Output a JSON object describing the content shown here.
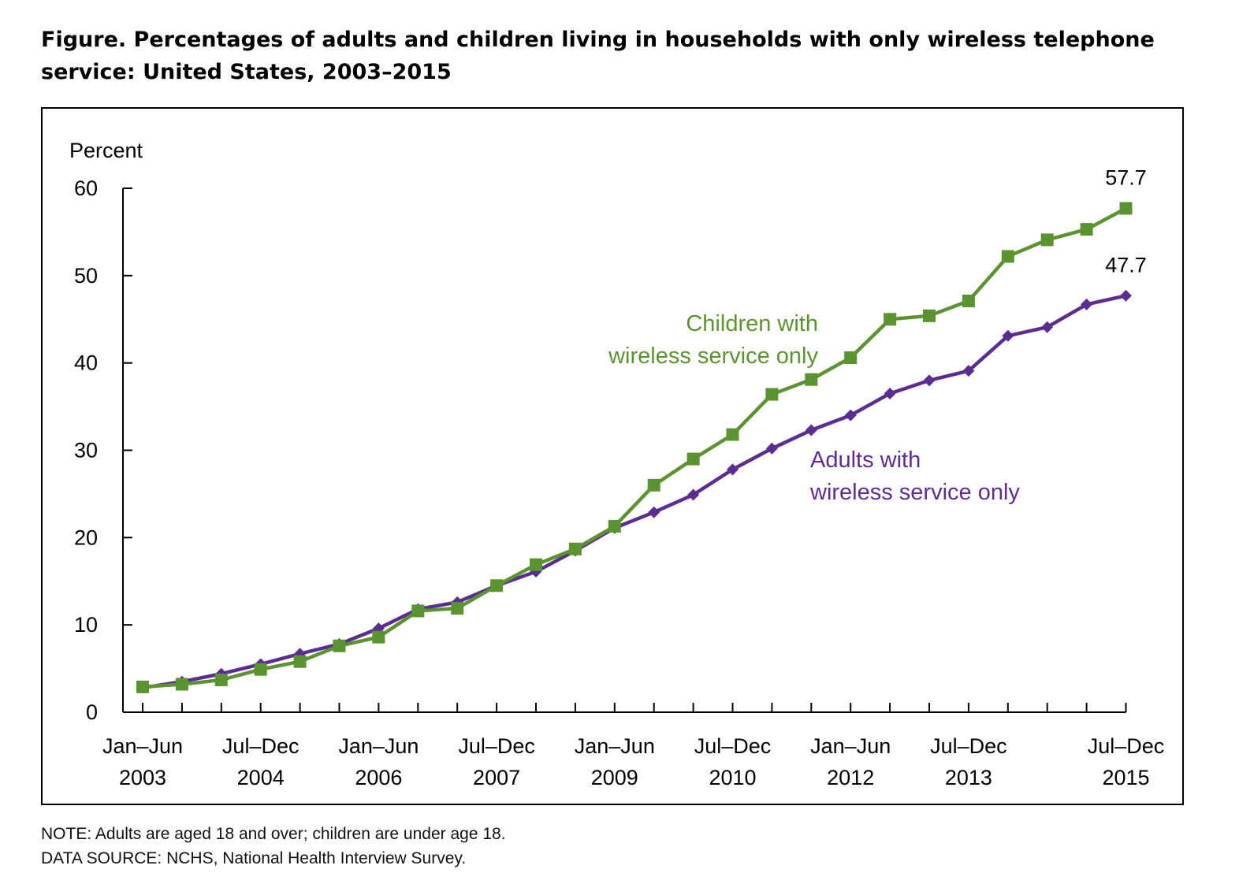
{
  "figure": {
    "title": "Figure. Percentages of adults and children living in households with only wireless telephone service: United States, 2003–2015",
    "note": "NOTE: Adults are aged 18 and over; children are under age 18.",
    "source": "DATA SOURCE:  NCHS, National Health Interview Survey."
  },
  "chart_data": {
    "type": "line",
    "title": "Figure. Percentages of adults and children living in households with only wireless telephone service: United States, 2003–2015",
    "ylabel": "Percent",
    "xlabel": "",
    "ylim": [
      0,
      60
    ],
    "yticks": [
      "0",
      "10",
      "20",
      "30",
      "40",
      "50",
      "60"
    ],
    "x": [
      "Jan–Jun 2003",
      "Jul–Dec 2003",
      "Jan–Jun 2004",
      "Jul–Dec 2004",
      "Jan–Jun 2005",
      "Jul–Dec 2005",
      "Jan–Jun 2006",
      "Jul–Dec 2006",
      "Jan–Jun 2007",
      "Jul–Dec 2007",
      "Jan–Jun 2008",
      "Jul–Dec 2008",
      "Jan–Jun 2009",
      "Jul–Dec 2009",
      "Jan–Jun 2010",
      "Jul–Dec 2010",
      "Jan–Jun 2011",
      "Jul–Dec 2011",
      "Jan–Jun 2012",
      "Jul–Dec 2012",
      "Jan–Jun 2013",
      "Jul–Dec 2013",
      "Jan–Jun 2014",
      "Jul–Dec 2014",
      "Jan–Jun 2015",
      "Jul–Dec 2015"
    ],
    "xtick_labels": [
      {
        "index": 0,
        "line1": "Jan–Jun",
        "line2": "2003"
      },
      {
        "index": 3,
        "line1": "Jul–Dec",
        "line2": "2004"
      },
      {
        "index": 6,
        "line1": "Jan–Jun",
        "line2": "2006"
      },
      {
        "index": 9,
        "line1": "Jul–Dec",
        "line2": "2007"
      },
      {
        "index": 12,
        "line1": "Jan–Jun",
        "line2": "2009"
      },
      {
        "index": 15,
        "line1": "Jul–Dec",
        "line2": "2010"
      },
      {
        "index": 18,
        "line1": "Jan–Jun",
        "line2": "2012"
      },
      {
        "index": 21,
        "line1": "Jul–Dec",
        "line2": "2013"
      },
      {
        "index": 25,
        "line1": "Jul–Dec",
        "line2": "2015"
      }
    ],
    "series": [
      {
        "name": "Children with wireless service only",
        "label_lines": [
          "Children with",
          "wireless service only"
        ],
        "color": "#5b9331",
        "marker": "square",
        "values": [
          2.9,
          3.2,
          3.7,
          4.9,
          5.8,
          7.6,
          8.6,
          11.6,
          11.9,
          14.5,
          16.9,
          18.7,
          21.3,
          26.0,
          29.0,
          31.8,
          36.4,
          38.1,
          40.6,
          45.0,
          45.4,
          47.1,
          52.2,
          54.1,
          55.3,
          57.7
        ],
        "end_label": "57.7"
      },
      {
        "name": "Adults with wireless service only",
        "label_lines": [
          "Adults with",
          "wireless service only"
        ],
        "color": "#5c2d91",
        "marker": "diamond",
        "values": [
          2.8,
          3.5,
          4.4,
          5.5,
          6.7,
          7.8,
          9.6,
          11.8,
          12.6,
          14.5,
          16.1,
          18.5,
          21.1,
          22.9,
          24.9,
          27.8,
          30.2,
          32.3,
          34.0,
          36.5,
          38.0,
          39.1,
          43.1,
          44.1,
          46.7,
          47.7
        ],
        "end_label": "47.7"
      }
    ],
    "grid": false,
    "legend": "inline-labels"
  }
}
